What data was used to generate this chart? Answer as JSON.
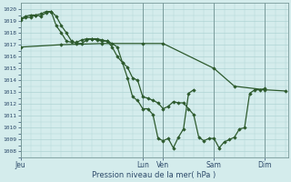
{
  "title": "",
  "xlabel": "Pression niveau de la mer( hPa )",
  "ylabel": "",
  "bg_color": "#d4ecec",
  "grid_color": "#b0d4d4",
  "line_color": "#2d5a2d",
  "ylim": [
    1007.5,
    1020.5
  ],
  "xlim": [
    0,
    315
  ],
  "day_labels": [
    "Jeu",
    "Lun",
    "Ven",
    "Sam",
    "Dim"
  ],
  "day_positions": [
    0,
    144,
    168,
    228,
    288
  ],
  "vline_color": "#7a9a9a",
  "series": [
    [
      0,
      1019.2,
      6,
      1019.4,
      12,
      1019.5,
      18,
      1019.5,
      24,
      1019.4,
      30,
      1019.7,
      36,
      1019.8,
      42,
      1019.4,
      48,
      1018.6,
      54,
      1018.0,
      60,
      1017.3,
      66,
      1017.1,
      72,
      1017.1,
      78,
      1017.4,
      84,
      1017.5,
      90,
      1017.5,
      96,
      1017.4,
      102,
      1017.3,
      108,
      1016.8,
      114,
      1016.0,
      120,
      1015.5,
      126,
      1015.1,
      132,
      1014.2,
      138,
      1014.0,
      144,
      1012.6,
      150,
      1012.5,
      156,
      1012.3,
      162,
      1012.1,
      168,
      1011.6,
      174,
      1011.8,
      180,
      1012.2,
      186,
      1012.1,
      192,
      1012.1,
      198,
      1011.6,
      204,
      1011.1,
      210,
      1009.2,
      216,
      1008.9,
      222,
      1009.1,
      228,
      1009.1,
      234,
      1008.3,
      240,
      1008.8,
      246,
      1009.0,
      252,
      1009.2,
      258,
      1009.9,
      264,
      1010.0,
      270,
      1012.9,
      276,
      1013.2,
      282,
      1013.2,
      288,
      1013.3
    ],
    [
      0,
      1016.8,
      48,
      1017.0,
      96,
      1017.1,
      144,
      1017.1,
      168,
      1017.1,
      228,
      1015.0,
      252,
      1013.5,
      288,
      1013.2,
      312,
      1013.1
    ],
    [
      0,
      1019.1,
      6,
      1019.3,
      12,
      1019.3,
      18,
      1019.5,
      24,
      1019.6,
      30,
      1019.8,
      36,
      1019.8,
      42,
      1018.6,
      48,
      1018.0,
      54,
      1017.3,
      60,
      1017.2,
      66,
      1017.2,
      72,
      1017.4,
      78,
      1017.5,
      84,
      1017.5,
      90,
      1017.4,
      96,
      1017.3,
      102,
      1017.3,
      108,
      1017.1,
      114,
      1016.8,
      120,
      1015.5,
      126,
      1014.2,
      132,
      1012.6,
      138,
      1012.3,
      144,
      1011.6,
      150,
      1011.6,
      156,
      1011.1,
      162,
      1009.1,
      168,
      1008.9,
      174,
      1009.1,
      180,
      1008.3,
      186,
      1009.2,
      192,
      1009.9,
      198,
      1012.9,
      204,
      1013.2
    ]
  ]
}
